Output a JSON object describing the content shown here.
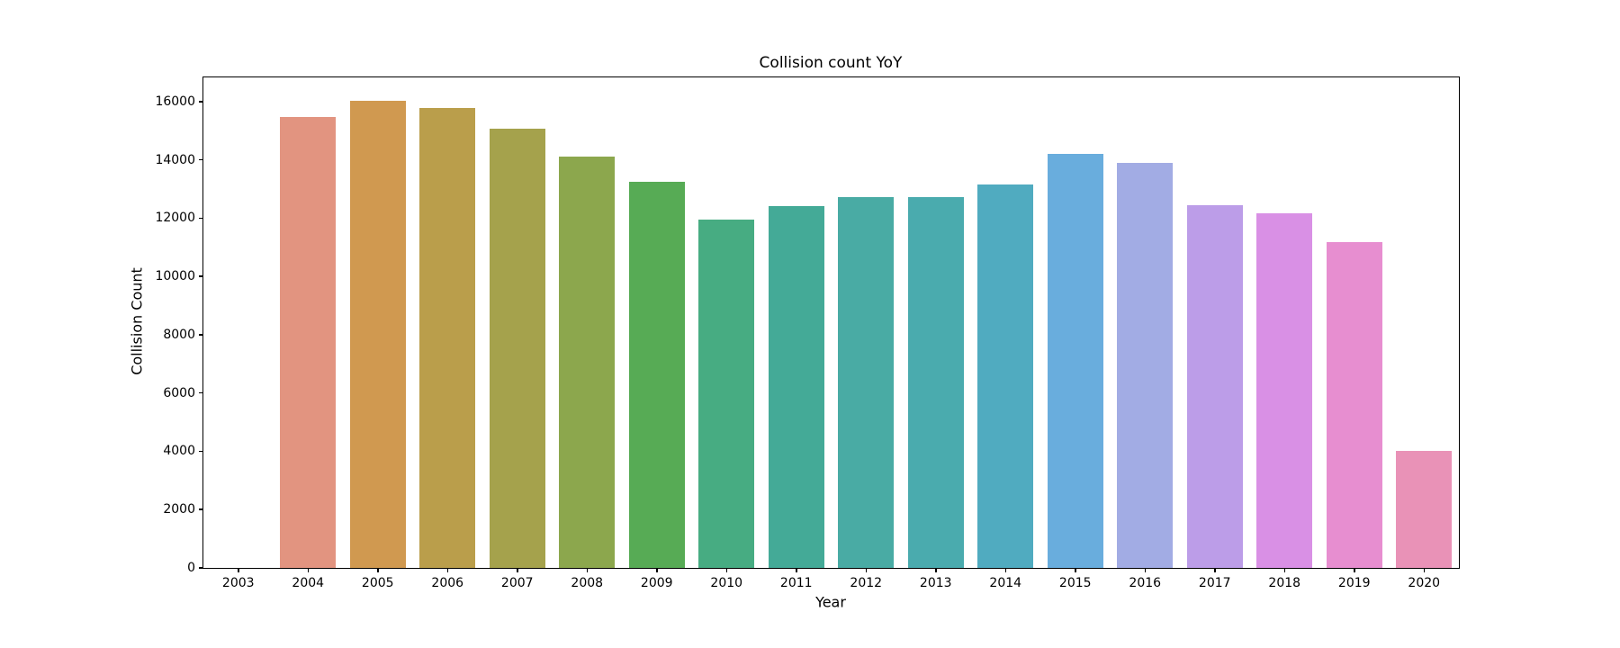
{
  "chart_data": {
    "type": "bar",
    "title": "Collision count YoY",
    "xlabel": "Year",
    "ylabel": "Collision Count",
    "categories": [
      "2003",
      "2004",
      "2005",
      "2006",
      "2007",
      "2008",
      "2009",
      "2010",
      "2011",
      "2012",
      "2013",
      "2014",
      "2015",
      "2016",
      "2017",
      "2018",
      "2019",
      "2020"
    ],
    "values": [
      0,
      15460,
      16030,
      15780,
      15080,
      14120,
      13250,
      11950,
      12400,
      12720,
      12720,
      13170,
      14220,
      13910,
      12450,
      12170,
      11190,
      4000
    ],
    "bar_colors": [
      "#f0788c",
      "#e29480",
      "#d09950",
      "#ba9e4b",
      "#a5a24c",
      "#8ca74d",
      "#57ab55",
      "#47ac82",
      "#44aa97",
      "#49aba4",
      "#4aabae",
      "#50abc0",
      "#69addd",
      "#a2ace4",
      "#bc9de8",
      "#d990e5",
      "#e78ed0",
      "#e992b7"
    ],
    "yticks": [
      0,
      2000,
      4000,
      6000,
      8000,
      10000,
      12000,
      14000,
      16000
    ],
    "ylim": [
      0,
      16830
    ],
    "grid": false,
    "legend": null,
    "background_color": "#ffffff",
    "axis_color": "#000000"
  }
}
